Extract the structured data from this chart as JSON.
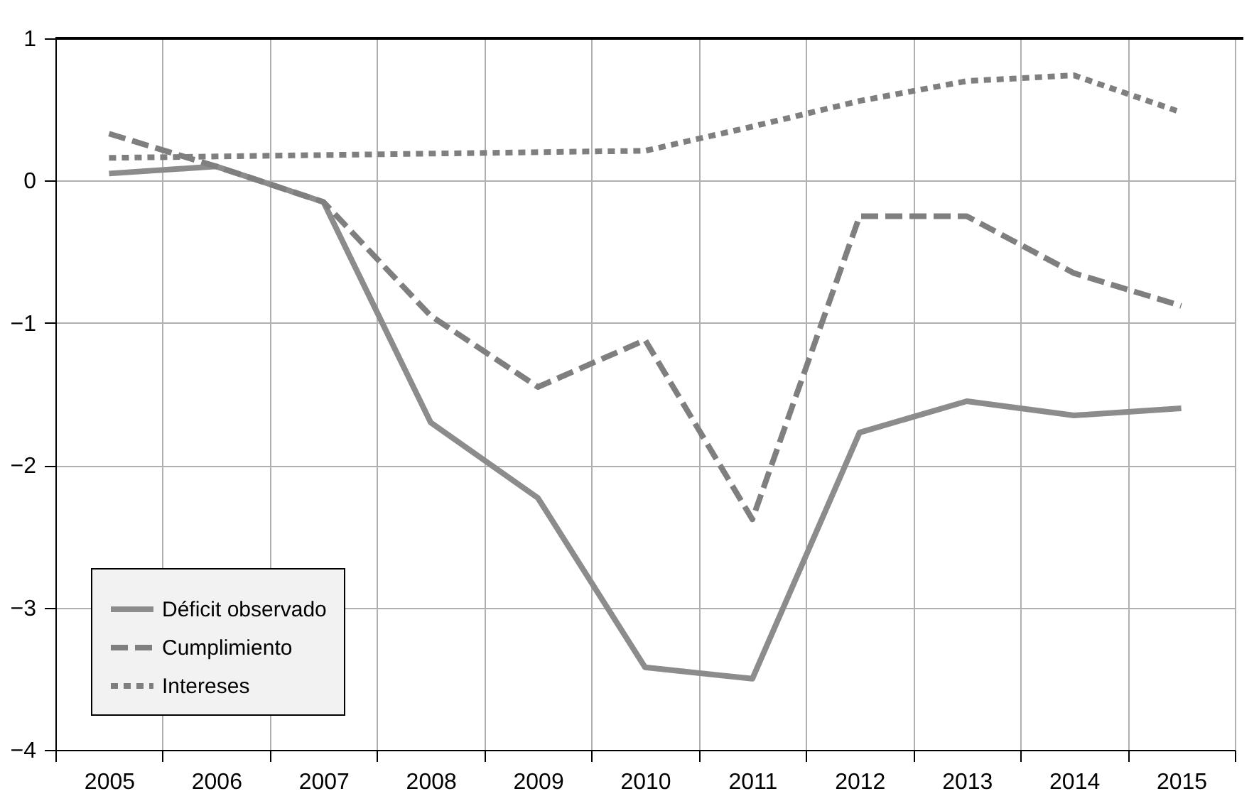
{
  "chart_data": {
    "type": "line",
    "categories": [
      "2005",
      "2006",
      "2007",
      "2008",
      "2009",
      "2010",
      "2011",
      "2012",
      "2013",
      "2014",
      "2015"
    ],
    "series": [
      {
        "name": "Déficit observado",
        "color": "#8c8c8c",
        "line_style": "solid",
        "values": [
          0.05,
          0.1,
          -0.15,
          -1.7,
          -2.23,
          -3.42,
          -3.5,
          -1.77,
          -1.55,
          -1.65,
          -1.6
        ]
      },
      {
        "name": "Cumplimiento",
        "color": "#7f7f7f",
        "line_style": "dashed",
        "values": [
          0.33,
          0.1,
          -0.15,
          -0.95,
          -1.45,
          -1.12,
          -2.38,
          -0.25,
          -0.25,
          -0.65,
          -0.88
        ]
      },
      {
        "name": "Intereses",
        "color": "#7f7f7f",
        "line_style": "dotted",
        "values": [
          0.16,
          0.17,
          0.18,
          0.19,
          0.2,
          0.21,
          0.38,
          0.56,
          0.7,
          0.74,
          0.48
        ]
      }
    ],
    "ylim": [
      -4,
      1
    ],
    "yticks": [
      -4,
      -3,
      -2,
      -1,
      0,
      1
    ],
    "grid": true,
    "legend": "bottom left",
    "marker": "none"
  }
}
